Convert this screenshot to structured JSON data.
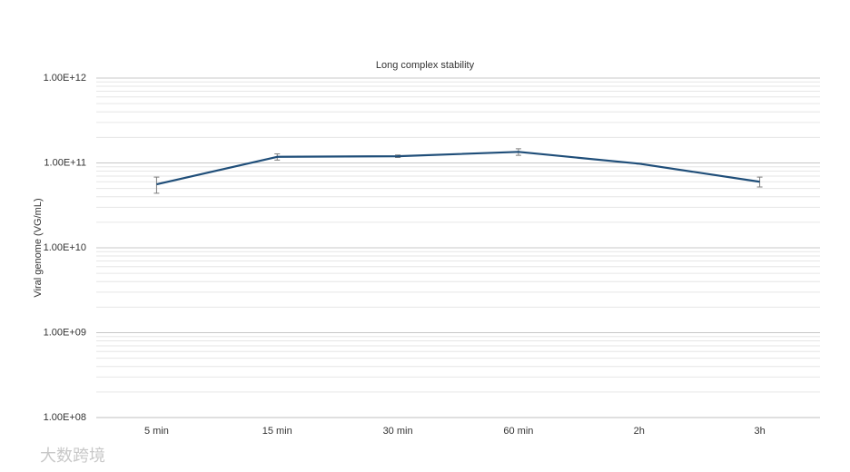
{
  "chart_data": {
    "type": "line",
    "title": "Long complex stability",
    "y_label": "Viral genome (VG/mL)",
    "categories": [
      "5 min",
      "15 min",
      "30 min",
      "60 min",
      "2h",
      "3h"
    ],
    "series": [
      {
        "name": "Viral genome",
        "color": "#1f4e79",
        "values": [
          56000000000,
          118000000000,
          120000000000,
          135000000000,
          98000000000,
          60000000000
        ],
        "errors": [
          12000000000,
          10000000000,
          4000000000,
          12000000000,
          1000000000,
          8000000000
        ]
      }
    ],
    "error_color": "#7f7f7f",
    "log_y": true,
    "ylim": [
      100000000,
      1000000000000
    ],
    "yticks": [
      {
        "value": 100000000,
        "label": "1.00E+08"
      },
      {
        "value": 1000000000,
        "label": "1.00E+09"
      },
      {
        "value": 10000000000,
        "label": "1.00E+10"
      },
      {
        "value": 100000000000,
        "label": "1.00E+11"
      },
      {
        "value": 1000000000000,
        "label": "1.00E+12"
      }
    ],
    "grid": true,
    "minor_grid": true,
    "watermark": "大数跨境"
  }
}
